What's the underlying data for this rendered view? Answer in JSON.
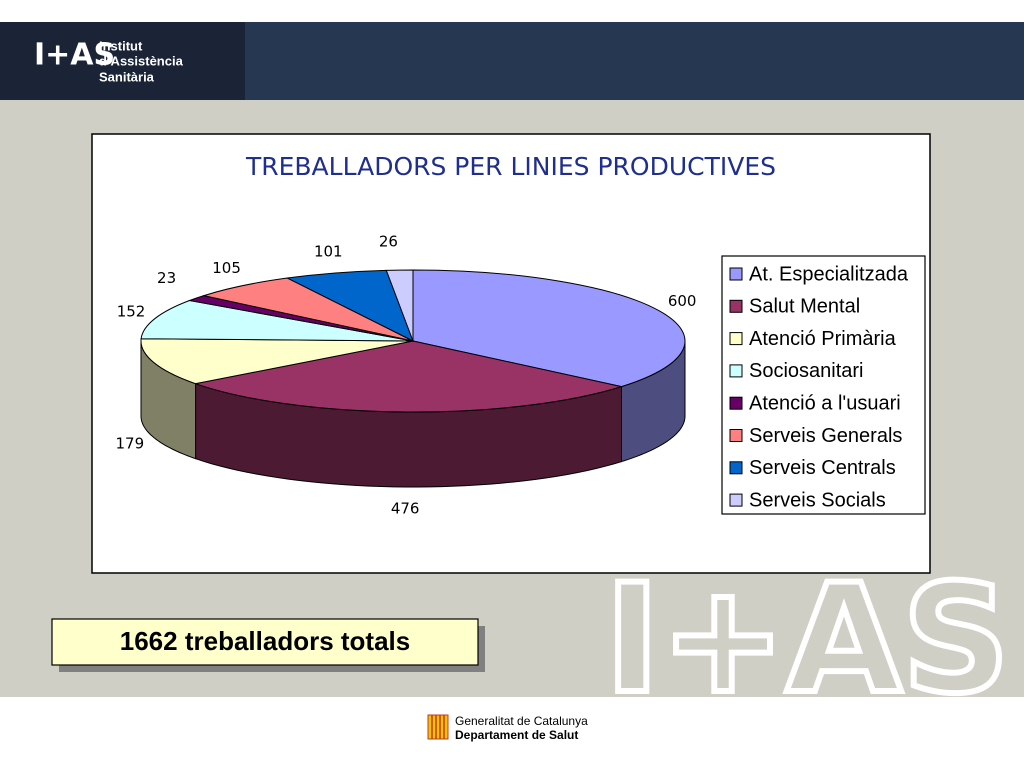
{
  "header": {
    "logo": "I+AS",
    "lines": [
      "Institut",
      "d’Assistència",
      "Sanitària"
    ]
  },
  "chart_data": {
    "type": "pie3d",
    "title": "TREBALLADORS PER LINIES PRODUCTIVES",
    "categories": [
      "At. Especialitzada",
      "Salut Mental",
      "Atenció Primària",
      "Sociosanitari",
      "Atenció a l'usuari",
      "Serveis Generals",
      "Serveis Centrals",
      "Serveis Socials"
    ],
    "values": [
      600,
      476,
      179,
      152,
      23,
      105,
      101,
      26
    ],
    "colors": [
      "#9999ff",
      "#993366",
      "#ffffcc",
      "#ccffff",
      "#660066",
      "#ff8080",
      "#0066cc",
      "#ccccff"
    ],
    "legend": "right"
  },
  "summary": "1662 treballadors totals",
  "footer": {
    "lines": [
      "Generalitat de Catalunya",
      "Departament de Salut"
    ]
  }
}
